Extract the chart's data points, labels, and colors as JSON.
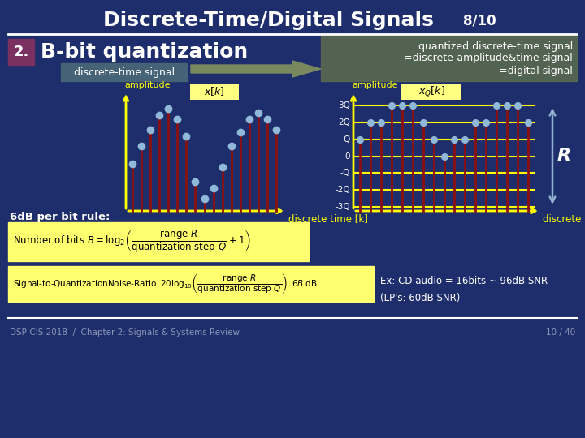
{
  "title": "Discrete-Time/Digital Signals",
  "slide_num": "8/10",
  "bg_color": "#1e2d6b",
  "section_num": "2.",
  "section_title": "B-bit quantization",
  "section_box_color": "#7a3060",
  "left_label": "discrete-time signal",
  "left_label_bg": "#4a6878",
  "right_box_bg": "#5a6a50",
  "right_box_lines": [
    "quantized discrete-time signal",
    "=discrete-amplitude&time signal",
    "=digital signal"
  ],
  "signal_values": [
    0.45,
    0.62,
    0.78,
    0.92,
    0.98,
    0.88,
    0.72,
    0.28,
    0.12,
    0.22,
    0.42,
    0.62,
    0.76,
    0.88,
    0.94,
    0.88,
    0.78
  ],
  "bar_color": "#8b1010",
  "dot_color": "#90b8d8",
  "level_labels": [
    "3Q",
    "2Q",
    "Q",
    "0",
    "-Q",
    "-2Q",
    "-3Q"
  ],
  "axis_color": "#ffff00",
  "amplitude_label": "amplitude",
  "time_label": "discrete time [k]",
  "r_label": "R",
  "six_db_text": "6dB per bit rule:",
  "formula1_bg": "#ffff70",
  "formula2_bg": "#ffff70",
  "ex_text": "Ex: CD audio = 16bits ~ 96dB SNR\n(LP's: 60dB SNR)",
  "footer_left": "DSP-CIS 2018  /  Chapter-2: Signals & Systems Review",
  "footer_right": "10 / 40",
  "footer_color": "#8898b8",
  "yellow_color": "#ffff00",
  "white": "#ffffff"
}
